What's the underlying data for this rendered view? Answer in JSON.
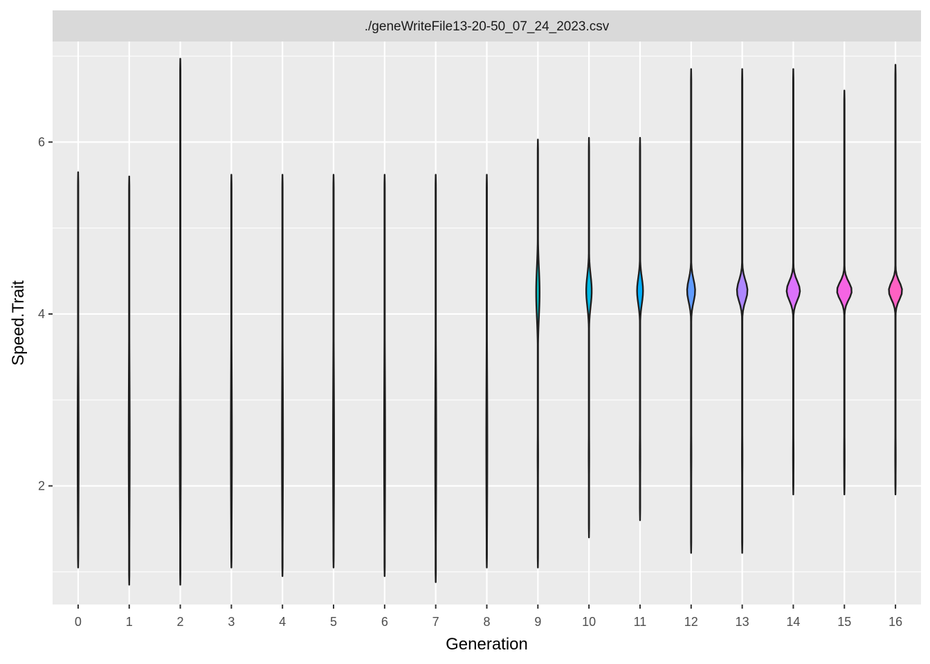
{
  "chart_data": {
    "type": "violin",
    "title": "",
    "strip_label": "./geneWriteFile13-20-50_07_24_2023.csv",
    "xlabel": "Generation",
    "ylabel": "Speed.Trait",
    "categories": [
      "0",
      "1",
      "2",
      "3",
      "4",
      "5",
      "6",
      "7",
      "8",
      "9",
      "10",
      "11",
      "12",
      "13",
      "14",
      "15",
      "16"
    ],
    "yticks": [
      2,
      4,
      6
    ],
    "ylim": [
      0.62,
      7.17
    ],
    "grid": true,
    "legend": "none",
    "colors": [
      "#F8766D",
      "#E98529",
      "#D39200",
      "#B79F00",
      "#93AA00",
      "#5EB300",
      "#00BA38",
      "#00BF74",
      "#00C19F",
      "#00BFC4",
      "#00B9E3",
      "#00ADFA",
      "#619CFF",
      "#AE87FF",
      "#DB72FB",
      "#F564E3",
      "#FF61C3"
    ],
    "min": [
      1.05,
      0.85,
      0.85,
      1.05,
      0.95,
      1.05,
      0.95,
      0.88,
      1.05,
      1.05,
      1.4,
      1.6,
      1.22,
      1.22,
      1.9,
      1.9,
      1.9
    ],
    "max": [
      5.65,
      5.6,
      6.97,
      5.62,
      5.62,
      5.62,
      5.62,
      5.62,
      5.62,
      6.03,
      6.05,
      6.05,
      6.85,
      6.85,
      6.85,
      6.6,
      6.9
    ],
    "peak": [
      null,
      null,
      null,
      null,
      null,
      null,
      null,
      null,
      null,
      4.25,
      4.27,
      4.27,
      4.27,
      4.27,
      4.27,
      4.27,
      4.27
    ],
    "peak_halfwidth": [
      0,
      0,
      0,
      0,
      0,
      0,
      0,
      0,
      0,
      0.075,
      0.12,
      0.13,
      0.175,
      0.23,
      0.29,
      0.32,
      0.29
    ],
    "peak_spread": [
      0.35,
      0.35,
      0.35,
      0.35,
      0.35,
      0.35,
      0.35,
      0.35,
      0.35,
      0.28,
      0.18,
      0.15,
      0.13,
      0.12,
      0.11,
      0.1,
      0.1
    ]
  }
}
